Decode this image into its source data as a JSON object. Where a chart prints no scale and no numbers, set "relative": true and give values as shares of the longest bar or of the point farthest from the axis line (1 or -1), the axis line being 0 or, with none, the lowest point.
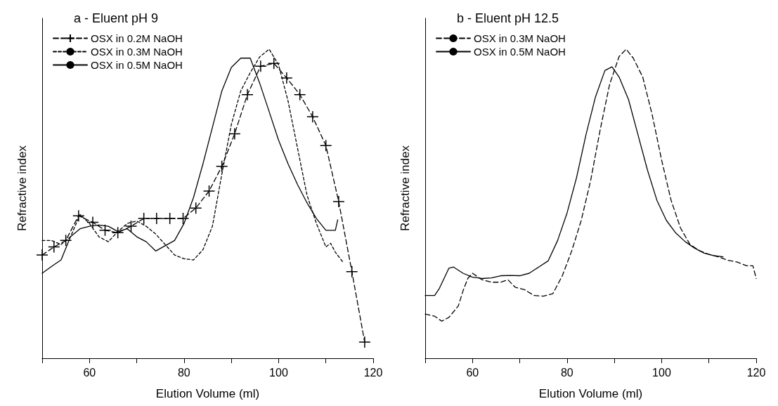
{
  "chart_data": [
    {
      "type": "line",
      "title": "a - Eluent pH 9",
      "xlabel": "Elution Volume (ml)",
      "ylabel": "Refractive index",
      "relative": true,
      "xlim": [
        50,
        120
      ],
      "xticks": [
        {
          "value": 50,
          "label": null
        },
        60,
        {
          "value": 70,
          "label": null
        },
        80,
        {
          "value": 90,
          "label": null
        },
        100,
        {
          "value": 110,
          "label": null
        },
        120
      ],
      "tick_labels": "x",
      "grid": false,
      "legend": "top left",
      "series": [
        {
          "name": "OSX in 0.2M NaOH",
          "color": "#000000",
          "line_style": "dashed",
          "marker": "cross",
          "x": [
            50,
            52.5,
            55,
            57.7,
            60.7,
            63.3,
            66,
            68.8,
            71.5,
            74.2,
            77,
            79.8,
            82.5,
            85.3,
            88,
            90.7,
            93.4,
            96.2,
            99,
            101.7,
            104.5,
            107.2,
            110,
            112.7,
            115.5,
            118.2
          ],
          "values": [
            0.334,
            0.36,
            0.381,
            0.461,
            0.44,
            0.414,
            0.406,
            0.427,
            0.452,
            0.452,
            0.452,
            0.452,
            0.486,
            0.541,
            0.621,
            0.726,
            0.853,
            0.945,
            0.954,
            0.907,
            0.853,
            0.781,
            0.688,
            0.507,
            0.28,
            0.052
          ]
        },
        {
          "name": "OSX in 0.3M NaOH",
          "color": "#000000",
          "line_style": "dotted",
          "marker": "none",
          "x": [
            50,
            52,
            54,
            56,
            58,
            60,
            62,
            64,
            66,
            68,
            70,
            72,
            74,
            76,
            78,
            80,
            82,
            84,
            86,
            88,
            90,
            92,
            94,
            96,
            98,
            100,
            102,
            104,
            106,
            108,
            110,
            111,
            112,
            113.5
          ],
          "values": [
            0.381,
            0.381,
            0.368,
            0.393,
            0.465,
            0.436,
            0.393,
            0.377,
            0.41,
            0.436,
            0.444,
            0.427,
            0.402,
            0.368,
            0.334,
            0.322,
            0.318,
            0.351,
            0.427,
            0.596,
            0.756,
            0.865,
            0.924,
            0.975,
            1.0,
            0.949,
            0.832,
            0.68,
            0.528,
            0.436,
            0.36,
            0.372,
            0.343,
            0.313
          ]
        },
        {
          "name": "OSX in 0.5M NaOH",
          "color": "#000000",
          "line_style": "solid",
          "marker": "none",
          "x": [
            50,
            52,
            54,
            56,
            58,
            60,
            62,
            64,
            66,
            68,
            70,
            72,
            74,
            76,
            78,
            80,
            82,
            84,
            86,
            88,
            90,
            92,
            94,
            96,
            98,
            100,
            102,
            104,
            106,
            108,
            110,
            111,
            112,
            112.5
          ],
          "values": [
            0.275,
            0.297,
            0.318,
            0.393,
            0.419,
            0.427,
            0.431,
            0.427,
            0.41,
            0.419,
            0.393,
            0.377,
            0.347,
            0.364,
            0.381,
            0.436,
            0.52,
            0.629,
            0.747,
            0.865,
            0.941,
            0.971,
            0.971,
            0.89,
            0.798,
            0.705,
            0.629,
            0.562,
            0.503,
            0.452,
            0.414,
            0.414,
            0.414,
            0.448
          ]
        }
      ]
    },
    {
      "type": "line",
      "title": "b - Eluent pH 12.5",
      "xlabel": "Elution Volume (ml)",
      "ylabel": "Refractive index",
      "relative": true,
      "xlim": [
        50,
        120
      ],
      "xticks": [
        {
          "value": 50,
          "label": null
        },
        60,
        {
          "value": 70,
          "label": null
        },
        80,
        {
          "value": 90,
          "label": null
        },
        100,
        {
          "value": 110,
          "label": null
        },
        120
      ],
      "tick_labels": "x",
      "grid": false,
      "legend": "top left",
      "series": [
        {
          "name": "OSX in 0.3M NaOH",
          "color": "#000000",
          "line_style": "dashed",
          "marker": "none",
          "x": [
            50,
            52,
            53.5,
            55,
            57,
            58,
            59,
            60,
            62,
            64,
            66,
            67.5,
            69,
            71,
            73,
            75,
            77,
            79,
            81,
            83,
            85,
            87,
            89,
            91,
            92.5,
            94,
            96,
            98,
            100,
            102,
            104,
            106,
            108,
            110,
            112,
            114,
            116,
            118,
            119.3,
            120
          ],
          "values": [
            0.143,
            0.136,
            0.12,
            0.132,
            0.169,
            0.218,
            0.258,
            0.275,
            0.254,
            0.246,
            0.246,
            0.254,
            0.23,
            0.222,
            0.203,
            0.201,
            0.209,
            0.267,
            0.348,
            0.446,
            0.576,
            0.739,
            0.886,
            0.976,
            1.0,
            0.971,
            0.91,
            0.788,
            0.641,
            0.511,
            0.421,
            0.368,
            0.348,
            0.336,
            0.328,
            0.317,
            0.311,
            0.299,
            0.299,
            0.258
          ]
        },
        {
          "name": "OSX in 0.5M NaOH",
          "color": "#000000",
          "line_style": "solid",
          "marker": "none",
          "x": [
            50,
            52,
            53,
            55,
            56,
            58,
            60,
            62,
            64,
            66,
            68,
            70,
            72,
            74,
            76,
            78,
            80,
            82,
            84,
            86,
            88,
            89.5,
            91,
            93,
            95,
            97,
            99,
            101,
            103,
            105,
            107,
            109,
            111,
            113
          ],
          "values": [
            0.203,
            0.203,
            0.226,
            0.291,
            0.295,
            0.275,
            0.262,
            0.258,
            0.26,
            0.267,
            0.268,
            0.267,
            0.275,
            0.295,
            0.315,
            0.381,
            0.47,
            0.584,
            0.723,
            0.845,
            0.931,
            0.943,
            0.91,
            0.837,
            0.723,
            0.609,
            0.511,
            0.446,
            0.405,
            0.377,
            0.356,
            0.34,
            0.332,
            0.328
          ]
        }
      ]
    }
  ]
}
